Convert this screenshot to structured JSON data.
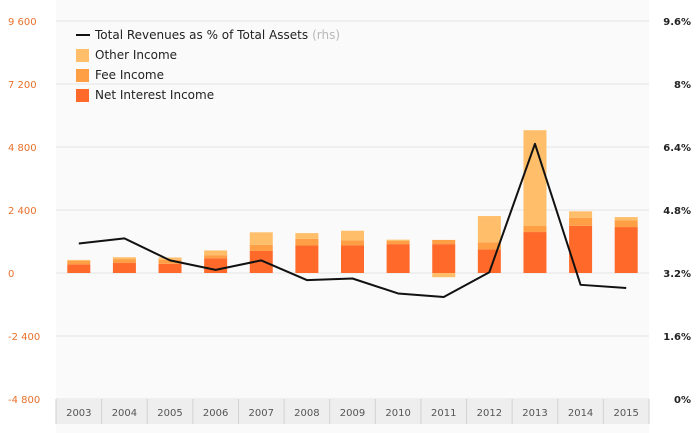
{
  "chart_data": {
    "type": "bar",
    "stacked": true,
    "categories": [
      "2003",
      "2004",
      "2005",
      "2006",
      "2007",
      "2008",
      "2009",
      "2010",
      "2011",
      "2012",
      "2013",
      "2014",
      "2015"
    ],
    "series": [
      {
        "name": "Net Interest Income",
        "color": "#ff6a2b",
        "values": [
          330,
          380,
          350,
          560,
          840,
          1050,
          1050,
          1100,
          1100,
          900,
          1560,
          1800,
          1750
        ]
      },
      {
        "name": "Fee Income",
        "color": "#ff9f45",
        "values": [
          130,
          150,
          150,
          120,
          230,
          250,
          190,
          120,
          160,
          270,
          230,
          300,
          260
        ]
      },
      {
        "name": "Other Income",
        "color": "#ffbe6a",
        "values": [
          40,
          70,
          90,
          180,
          480,
          220,
          370,
          50,
          -160,
          1000,
          3650,
          250,
          120
        ]
      }
    ],
    "line_series": {
      "name": "Total Revenues as % of Total Assets",
      "axis": "rhs",
      "color": "#111111",
      "values": [
        3.95,
        4.08,
        3.52,
        3.28,
        3.52,
        3.02,
        3.06,
        2.68,
        2.59,
        3.22,
        6.48,
        2.9,
        2.82
      ]
    },
    "ylim": [
      -4800,
      9600
    ],
    "y_ticks": [
      "9 600",
      "7 200",
      "4 800",
      "2 400",
      "0",
      "-2 400",
      "-4 800"
    ],
    "y2lim": [
      0,
      9.6
    ],
    "y2_ticks": [
      "9.6%",
      "8%",
      "6.4%",
      "4.8%",
      "3.2%",
      "1.6%",
      "0%"
    ],
    "title": "",
    "xlabel": "",
    "ylabel": "",
    "legend": {
      "placement": "top-left",
      "entries": [
        {
          "label": "Total Revenues as % of Total Assets",
          "suffix": "(rhs)",
          "kind": "line",
          "color": "#111111"
        },
        {
          "label": "Other Income",
          "kind": "box",
          "color": "#ffbe6a"
        },
        {
          "label": "Fee Income",
          "kind": "box",
          "color": "#ff9f45"
        },
        {
          "label": "Net Interest Income",
          "kind": "box",
          "color": "#ff6a2b"
        }
      ]
    },
    "grid": true
  }
}
